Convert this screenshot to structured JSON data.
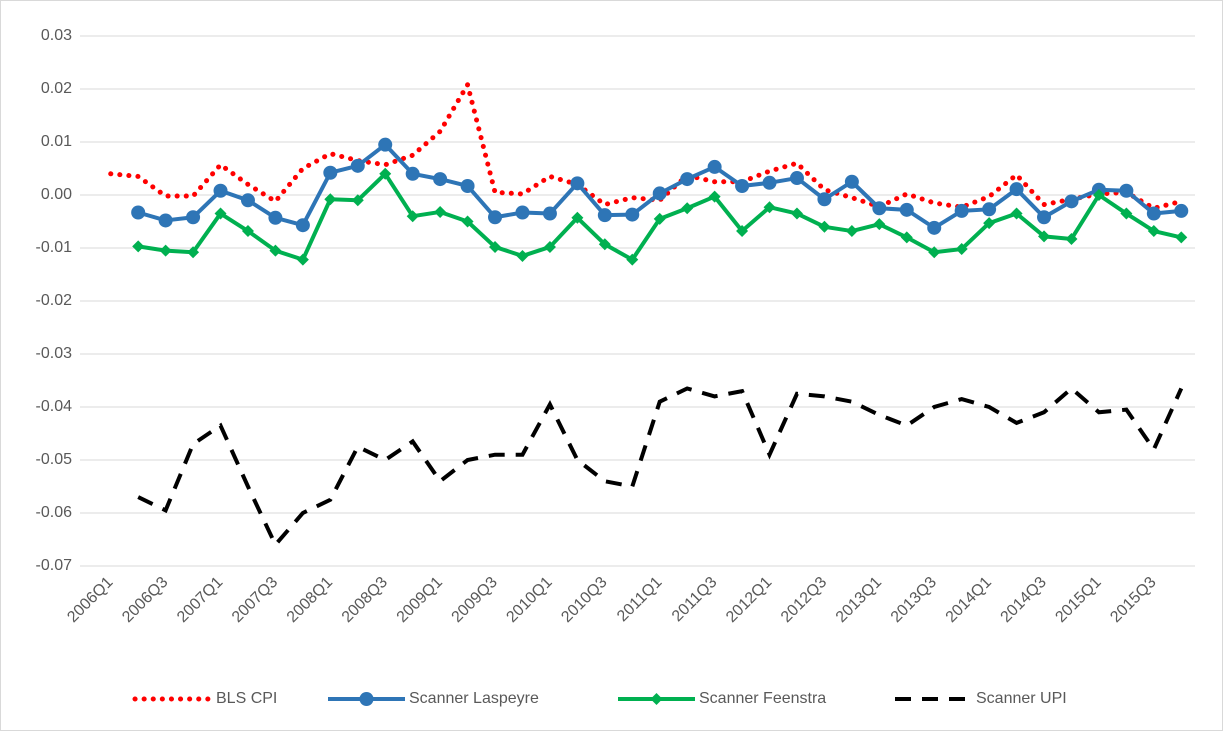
{
  "chart_data": {
    "type": "line",
    "categories": [
      "2006Q1",
      null,
      "2006Q3",
      null,
      "2007Q1",
      null,
      "2007Q3",
      null,
      "2008Q1",
      null,
      "2008Q3",
      null,
      "2009Q1",
      null,
      "2009Q3",
      null,
      "2010Q1",
      null,
      "2010Q3",
      null,
      "2011Q1",
      null,
      "2011Q3",
      null,
      "2012Q1",
      null,
      "2012Q3",
      null,
      "2013Q1",
      null,
      "2013Q3",
      null,
      "2014Q1",
      null,
      "2014Q3",
      null,
      "2015Q1",
      null,
      "2015Q3",
      null
    ],
    "series": [
      {
        "name": "BLS CPI",
        "color": "#ff0000",
        "dash": "dotted",
        "values": [
          0.004,
          0.0035,
          -0.0002,
          -0.0002,
          0.0057,
          0.002,
          -0.0012,
          0.005,
          0.0078,
          0.0065,
          0.0057,
          0.0075,
          0.012,
          0.0208,
          0.0005,
          0.0002,
          0.0035,
          0.002,
          -0.0018,
          -0.0005,
          -0.001,
          0.0037,
          0.0025,
          0.0025,
          0.0045,
          0.006,
          0.001,
          -0.0005,
          -0.0022,
          0.0002,
          -0.0015,
          -0.0023,
          -0.0003,
          0.0038,
          -0.0018,
          -0.0008,
          0.0002,
          0.0005,
          -0.0025,
          -0.0012
        ]
      },
      {
        "name": "Scanner Laspeyre",
        "color": "#2e75b6",
        "dash": "solid",
        "marker": "circle",
        "values": [
          null,
          -0.0033,
          -0.0048,
          -0.0042,
          0.0008,
          -0.001,
          -0.0043,
          -0.0057,
          0.0042,
          0.0055,
          0.0095,
          0.004,
          0.003,
          0.0017,
          -0.0042,
          -0.0033,
          -0.0035,
          0.0022,
          -0.0038,
          -0.0037,
          0.0003,
          0.003,
          0.0053,
          0.0017,
          0.0023,
          0.0032,
          -0.0008,
          0.0025,
          -0.0025,
          -0.0028,
          -0.0062,
          -0.003,
          -0.0027,
          0.0011,
          -0.0042,
          -0.0012,
          0.001,
          0.0008,
          -0.0035,
          -0.003
        ]
      },
      {
        "name": "Scanner Feenstra",
        "color": "#00b050",
        "dash": "solid",
        "marker": "diamond",
        "values": [
          null,
          -0.0097,
          -0.0105,
          -0.0108,
          -0.0035,
          -0.0068,
          -0.0105,
          -0.0122,
          -0.0008,
          -0.001,
          0.004,
          -0.004,
          -0.0032,
          -0.005,
          -0.0098,
          -0.0115,
          -0.0098,
          -0.0043,
          -0.0093,
          -0.0122,
          -0.0045,
          -0.0025,
          -0.0003,
          -0.0068,
          -0.0023,
          -0.0035,
          -0.006,
          -0.0068,
          -0.0055,
          -0.008,
          -0.0108,
          -0.0102,
          -0.0053,
          -0.0035,
          -0.0078,
          -0.0083,
          0,
          -0.0035,
          -0.0068,
          -0.008
        ]
      },
      {
        "name": "Scanner UPI",
        "color": "#000000",
        "dash": "dashed",
        "values": [
          null,
          -0.057,
          -0.0595,
          -0.047,
          -0.0435,
          -0.055,
          -0.066,
          -0.06,
          -0.0575,
          -0.0475,
          -0.05,
          -0.0465,
          -0.054,
          -0.05,
          -0.049,
          -0.049,
          -0.0395,
          -0.05,
          -0.054,
          -0.055,
          -0.039,
          -0.0365,
          -0.038,
          -0.037,
          -0.049,
          -0.0375,
          -0.038,
          -0.039,
          -0.0415,
          -0.0435,
          -0.04,
          -0.0385,
          -0.04,
          -0.043,
          -0.041,
          -0.0365,
          -0.041,
          -0.0405,
          -0.048,
          -0.0365
        ]
      }
    ],
    "ylim": [
      -0.07,
      0.03
    ],
    "yticks": [
      -0.07,
      -0.06,
      -0.05,
      -0.04,
      -0.03,
      -0.02,
      -0.01,
      {
        "value": 0,
        "label": "0.00"
      },
      0.01,
      0.02,
      0.03
    ],
    "grid": true,
    "legend": "bottom"
  }
}
